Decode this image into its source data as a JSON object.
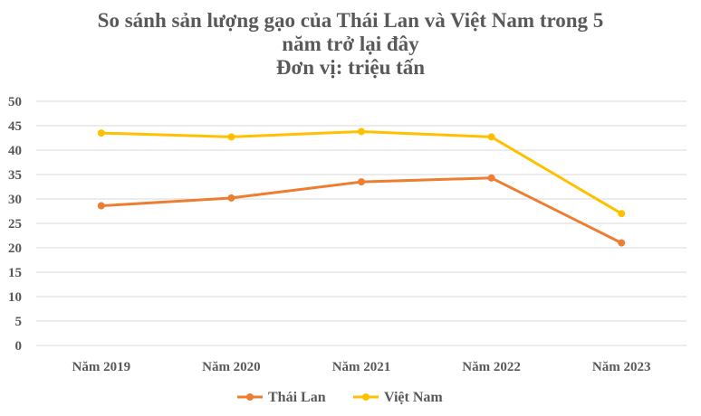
{
  "chart_data": {
    "type": "line",
    "title_lines": [
      "So sánh sản lượng gạo của Thái Lan và Việt Nam trong 5",
      "năm trở lại đây",
      "Đơn vị: triệu tấn"
    ],
    "categories": [
      "Năm 2019",
      "Năm 2020",
      "Năm 2021",
      "Năm 2022",
      "Năm 2023"
    ],
    "series": [
      {
        "name": "Thái Lan",
        "color": "#ed7d31",
        "values": [
          28.6,
          30.2,
          33.5,
          34.3,
          21.0
        ]
      },
      {
        "name": "Việt Nam",
        "color": "#ffc000",
        "values": [
          43.5,
          42.7,
          43.8,
          42.7,
          27.0
        ]
      }
    ],
    "ylim": [
      0,
      50
    ],
    "yticks": [
      0,
      5,
      10,
      15,
      20,
      25,
      30,
      35,
      40,
      45,
      50
    ],
    "grid": true,
    "legend_position": "bottom"
  }
}
